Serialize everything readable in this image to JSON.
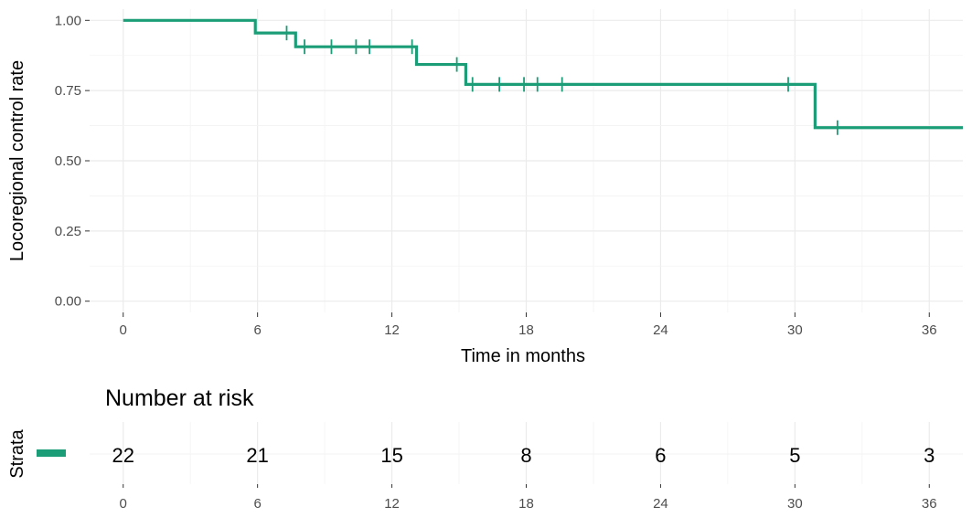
{
  "chart_data": [
    {
      "type": "line",
      "xlabel": "Time in months",
      "ylabel": "Locoregional control rate",
      "xlim": [
        -1.5,
        37.5
      ],
      "ylim": [
        -0.04,
        1.04
      ],
      "x_ticks": [
        0,
        6,
        12,
        18,
        24,
        30,
        36
      ],
      "x_tick_labels": [
        "0",
        "6",
        "12",
        "18",
        "24",
        "30",
        "36"
      ],
      "y_ticks": [
        0,
        0.25,
        0.5,
        0.75,
        1.0
      ],
      "y_tick_labels": [
        "0.00",
        "0.25",
        "0.50",
        "0.75",
        "1.00"
      ],
      "grid": true,
      "color": "#1b9e77",
      "series": [
        {
          "step_points": [
            {
              "x": 0,
              "y": 1.0
            },
            {
              "x": 5.9,
              "y": 0.955
            },
            {
              "x": 7.7,
              "y": 0.906
            },
            {
              "x": 13.1,
              "y": 0.843
            },
            {
              "x": 15.3,
              "y": 0.772
            },
            {
              "x": 30.9,
              "y": 0.618
            },
            {
              "x": 37.5,
              "y": 0.618
            }
          ],
          "censor_marks": [
            {
              "x": 7.3,
              "y": 0.955
            },
            {
              "x": 8.1,
              "y": 0.906
            },
            {
              "x": 9.3,
              "y": 0.906
            },
            {
              "x": 10.4,
              "y": 0.906
            },
            {
              "x": 11.0,
              "y": 0.906
            },
            {
              "x": 12.9,
              "y": 0.906
            },
            {
              "x": 14.9,
              "y": 0.843
            },
            {
              "x": 15.6,
              "y": 0.772
            },
            {
              "x": 16.8,
              "y": 0.772
            },
            {
              "x": 17.9,
              "y": 0.772
            },
            {
              "x": 18.5,
              "y": 0.772
            },
            {
              "x": 19.6,
              "y": 0.772
            },
            {
              "x": 29.7,
              "y": 0.772
            },
            {
              "x": 31.9,
              "y": 0.618
            }
          ]
        }
      ]
    },
    {
      "type": "table",
      "title": "Number at risk",
      "ylabel": "Strata",
      "times": [
        0,
        6,
        12,
        18,
        24,
        30,
        36
      ],
      "time_labels": [
        "0",
        "6",
        "12",
        "18",
        "24",
        "30",
        "36"
      ],
      "counts": [
        "22",
        "21",
        "15",
        "8",
        "6",
        "5",
        "3"
      ],
      "color": "#1b9e77"
    }
  ]
}
